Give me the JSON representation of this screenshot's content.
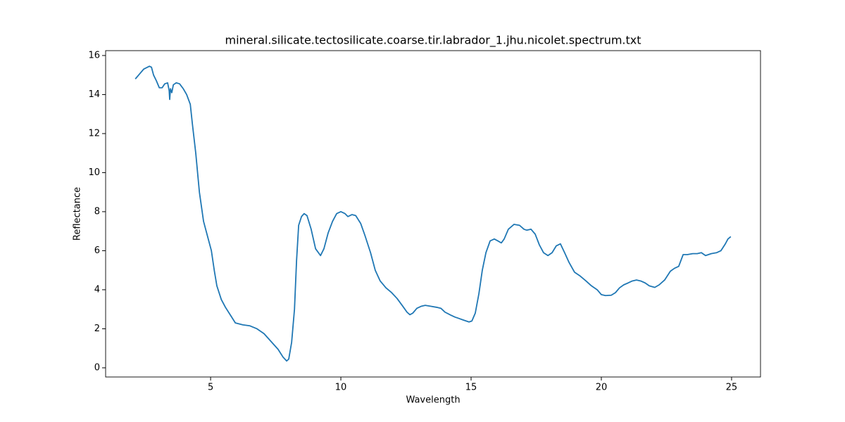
{
  "chart_data": {
    "type": "line",
    "title": "mineral.silicate.tectosilicate.coarse.tir.labrador_1.jhu.nicolet.spectrum.txt",
    "x_label": "Wavelength",
    "y_label": "Reflectance",
    "xlim": [
      0.97,
      26.11
    ],
    "ylim": [
      -0.47,
      16.25
    ],
    "xticks": [
      5,
      10,
      15,
      20,
      25
    ],
    "yticks": [
      0,
      2,
      4,
      6,
      8,
      10,
      12,
      14,
      16
    ],
    "grid": false,
    "x": [
      2.11,
      2.27,
      2.43,
      2.65,
      2.73,
      2.81,
      2.92,
      3.03,
      3.14,
      3.24,
      3.35,
      3.41,
      3.43,
      3.46,
      3.51,
      3.57,
      3.68,
      3.81,
      3.95,
      4.08,
      4.22,
      4.3,
      4.43,
      4.57,
      4.73,
      4.89,
      5.03,
      5.14,
      5.24,
      5.41,
      5.57,
      5.76,
      5.95,
      6.24,
      6.51,
      6.78,
      7.05,
      7.32,
      7.59,
      7.78,
      7.92,
      8.0,
      8.11,
      8.22,
      8.3,
      8.38,
      8.49,
      8.59,
      8.7,
      8.86,
      9.03,
      9.22,
      9.35,
      9.51,
      9.68,
      9.84,
      10.0,
      10.16,
      10.27,
      10.43,
      10.57,
      10.76,
      10.92,
      11.14,
      11.32,
      11.51,
      11.73,
      11.95,
      12.16,
      12.38,
      12.54,
      12.65,
      12.76,
      12.92,
      13.08,
      13.24,
      13.46,
      13.68,
      13.84,
      14.0,
      14.22,
      14.38,
      14.49,
      14.7,
      14.92,
      15.03,
      15.16,
      15.3,
      15.43,
      15.57,
      15.73,
      15.89,
      16.03,
      16.16,
      16.27,
      16.43,
      16.65,
      16.86,
      17.03,
      17.14,
      17.3,
      17.46,
      17.62,
      17.78,
      17.95,
      18.11,
      18.27,
      18.43,
      18.59,
      18.76,
      18.97,
      19.19,
      19.41,
      19.62,
      19.84,
      20.0,
      20.16,
      20.38,
      20.54,
      20.7,
      20.86,
      21.03,
      21.19,
      21.35,
      21.51,
      21.68,
      21.84,
      22.05,
      22.22,
      22.43,
      22.65,
      22.81,
      22.97,
      23.14,
      23.3,
      23.51,
      23.68,
      23.84,
      24.0,
      24.22,
      24.43,
      24.59,
      24.76,
      24.86,
      24.97
    ],
    "series": [
      {
        "color": "#1f77b4",
        "values": [
          14.8,
          15.05,
          15.3,
          15.45,
          15.4,
          15.0,
          14.7,
          14.35,
          14.35,
          14.55,
          14.6,
          14.2,
          13.75,
          14.3,
          14.1,
          14.5,
          14.6,
          14.55,
          14.3,
          14.0,
          13.5,
          12.5,
          11.0,
          9.0,
          7.5,
          6.7,
          6.0,
          5.0,
          4.2,
          3.5,
          3.1,
          2.7,
          2.3,
          2.2,
          2.15,
          2.0,
          1.75,
          1.35,
          0.95,
          0.55,
          0.35,
          0.45,
          1.3,
          3.0,
          5.5,
          7.3,
          7.75,
          7.9,
          7.8,
          7.1,
          6.1,
          5.75,
          6.1,
          6.9,
          7.5,
          7.9,
          8.0,
          7.9,
          7.75,
          7.85,
          7.8,
          7.4,
          6.8,
          5.9,
          5.0,
          4.45,
          4.1,
          3.85,
          3.55,
          3.15,
          2.85,
          2.72,
          2.8,
          3.05,
          3.15,
          3.2,
          3.15,
          3.1,
          3.05,
          2.85,
          2.7,
          2.6,
          2.55,
          2.45,
          2.35,
          2.4,
          2.8,
          3.8,
          5.0,
          5.9,
          6.5,
          6.6,
          6.5,
          6.4,
          6.6,
          7.1,
          7.35,
          7.3,
          7.1,
          7.05,
          7.1,
          6.85,
          6.3,
          5.9,
          5.75,
          5.9,
          6.25,
          6.35,
          5.9,
          5.4,
          4.9,
          4.7,
          4.45,
          4.2,
          4.0,
          3.75,
          3.7,
          3.72,
          3.85,
          4.1,
          4.25,
          4.35,
          4.45,
          4.5,
          4.45,
          4.35,
          4.2,
          4.12,
          4.25,
          4.5,
          4.95,
          5.1,
          5.2,
          5.8,
          5.8,
          5.85,
          5.85,
          5.9,
          5.75,
          5.85,
          5.9,
          6.0,
          6.35,
          6.6,
          6.72
        ]
      }
    ]
  }
}
